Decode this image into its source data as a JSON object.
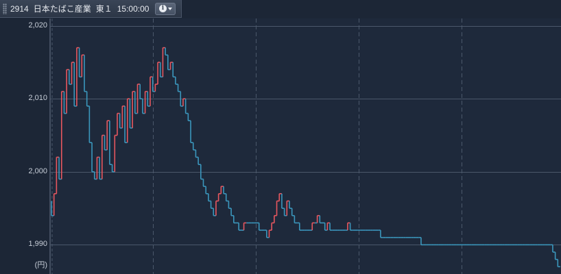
{
  "header": {
    "code": "2914",
    "name": "日本たばこ産業",
    "market": "東１",
    "time": "15:00:00",
    "info_icon": "info-icon",
    "dropdown_icon": "chevron-down-icon"
  },
  "chart_data": {
    "type": "line",
    "style": "step-line",
    "ylim": [
      1986,
      2021
    ],
    "yticks": [
      1990,
      2000,
      2010,
      2020
    ],
    "ytick_labels": [
      "1,990",
      "2,000",
      "2,010",
      "2,020"
    ],
    "unit_label": "(円)",
    "grid": true,
    "colors": {
      "up": "#e8575f",
      "down": "#3b97bd",
      "grid": "#4b586b",
      "background": "#1c2636"
    },
    "series": [
      {
        "values": [
          1996,
          1994,
          1997,
          2002,
          1999,
          2011,
          2008,
          2014,
          2012,
          2015,
          2009,
          2017,
          2013,
          2016,
          2011,
          2009,
          2004,
          2000,
          1999,
          2002,
          1999,
          2005,
          2003,
          2007,
          2001,
          2000,
          2005,
          2008,
          2006,
          2009,
          2004,
          2010,
          2006,
          2011,
          2008,
          2012,
          2010,
          2008,
          2011,
          2009,
          2013,
          2011,
          2012,
          2015,
          2013,
          2017,
          2016,
          2014,
          2015,
          2013,
          2012,
          2011,
          2009,
          2010,
          2008,
          2007,
          2004,
          2003,
          2002,
          2001,
          1999,
          1998,
          1997,
          1996,
          1995,
          1994,
          1996,
          1997,
          1998,
          1997,
          1996,
          1995,
          1994,
          1993,
          1993,
          1992,
          1992,
          1993,
          1993,
          1993,
          1993,
          1993,
          1993,
          1992,
          1992,
          1992,
          1991,
          1992,
          1993,
          1994,
          1996,
          1997,
          1995,
          1994,
          1996,
          1995,
          1994,
          1993,
          1993,
          1992,
          1992,
          1992,
          1992,
          1992,
          1993,
          1993,
          1994,
          1993,
          1993,
          1992,
          1993,
          1992,
          1992,
          1992,
          1992,
          1992,
          1992,
          1992,
          1993,
          1992,
          1992,
          1992,
          1992,
          1992,
          1992,
          1992,
          1992,
          1992,
          1992,
          1992,
          1992,
          1991,
          1991,
          1991,
          1991,
          1991,
          1991,
          1991,
          1991,
          1991,
          1991,
          1991,
          1991,
          1991,
          1991,
          1991,
          1991,
          1990,
          1990,
          1990,
          1990,
          1990,
          1990,
          1990,
          1990,
          1990,
          1990,
          1990,
          1990,
          1990,
          1990,
          1990,
          1990,
          1990,
          1990,
          1990,
          1990,
          1990,
          1990,
          1990,
          1990,
          1990,
          1990,
          1990,
          1990,
          1990,
          1990,
          1990,
          1990,
          1990,
          1990,
          1990,
          1990,
          1990,
          1990,
          1990,
          1990,
          1990,
          1990,
          1990,
          1990,
          1990,
          1990,
          1990,
          1990,
          1990,
          1990,
          1990,
          1990,
          1989,
          1988,
          1987
        ]
      }
    ]
  }
}
